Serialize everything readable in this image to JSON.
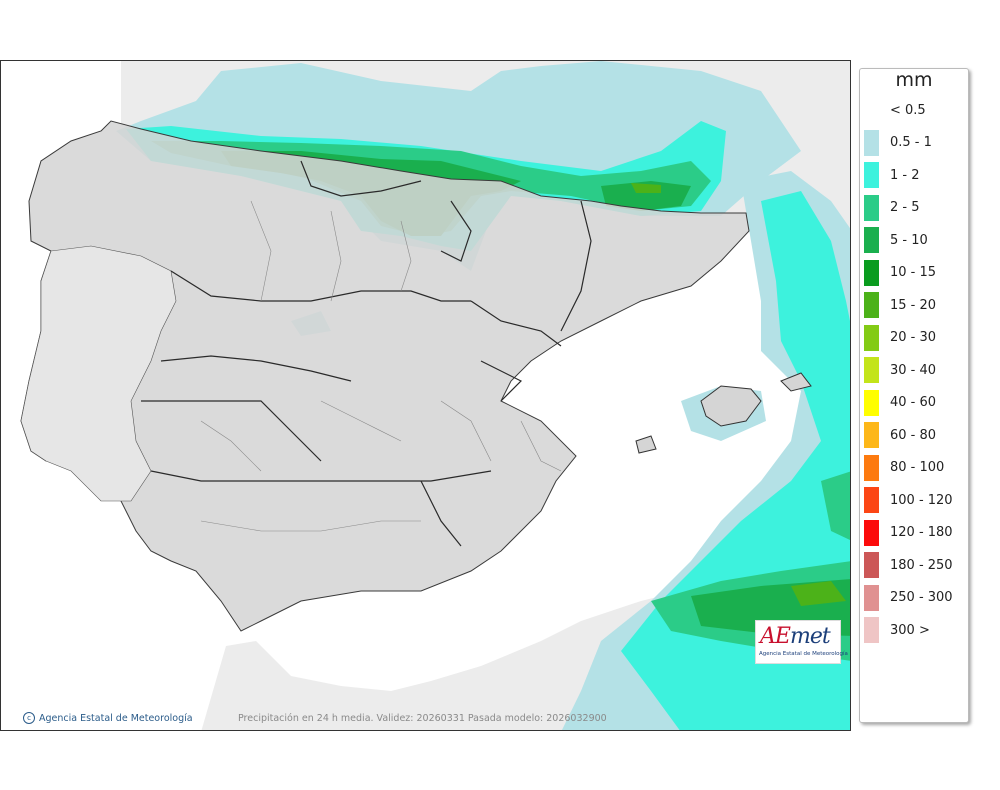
{
  "legend": {
    "unit": "mm",
    "classes": [
      {
        "label": "< 0.5",
        "color": "#ffffff"
      },
      {
        "label": "0.5 - 1",
        "color": "#b4e1e6"
      },
      {
        "label": "1 - 2",
        "color": "#3df2dd"
      },
      {
        "label": "2 - 5",
        "color": "#2bcc88"
      },
      {
        "label": "5 - 10",
        "color": "#1aaf4e"
      },
      {
        "label": "10 - 15",
        "color": "#0a9c1f"
      },
      {
        "label": "15 - 20",
        "color": "#4cb219"
      },
      {
        "label": "20 - 30",
        "color": "#83cb15"
      },
      {
        "label": "30 - 40",
        "color": "#c3e41a"
      },
      {
        "label": "40 - 60",
        "color": "#fffe00"
      },
      {
        "label": "60 - 80",
        "color": "#fdb719"
      },
      {
        "label": "80 - 100",
        "color": "#fd7a0f"
      },
      {
        "label": "100 - 120",
        "color": "#fc4615"
      },
      {
        "label": "120 - 180",
        "color": "#fc0b0b"
      },
      {
        "label": "180 - 250",
        "color": "#cc5757"
      },
      {
        "label": "250 - 300",
        "color": "#e09191"
      },
      {
        "label": "300 >",
        "color": "#efc5c5"
      }
    ]
  },
  "map": {
    "land_color": "#d5d5d5",
    "sea_color": "#ffffff",
    "foreign_land_color": "#ececec"
  },
  "footer": {
    "credit": "Agencia Estatal de Meteorología",
    "caption": "Precipitación en 24 h media. Validez: 20260331 Pasada modelo: 2026032900"
  },
  "logo": {
    "wordmark_ae": "AE",
    "wordmark_rest": "met",
    "subtitle": "Agencia Estatal de Meteorología"
  }
}
